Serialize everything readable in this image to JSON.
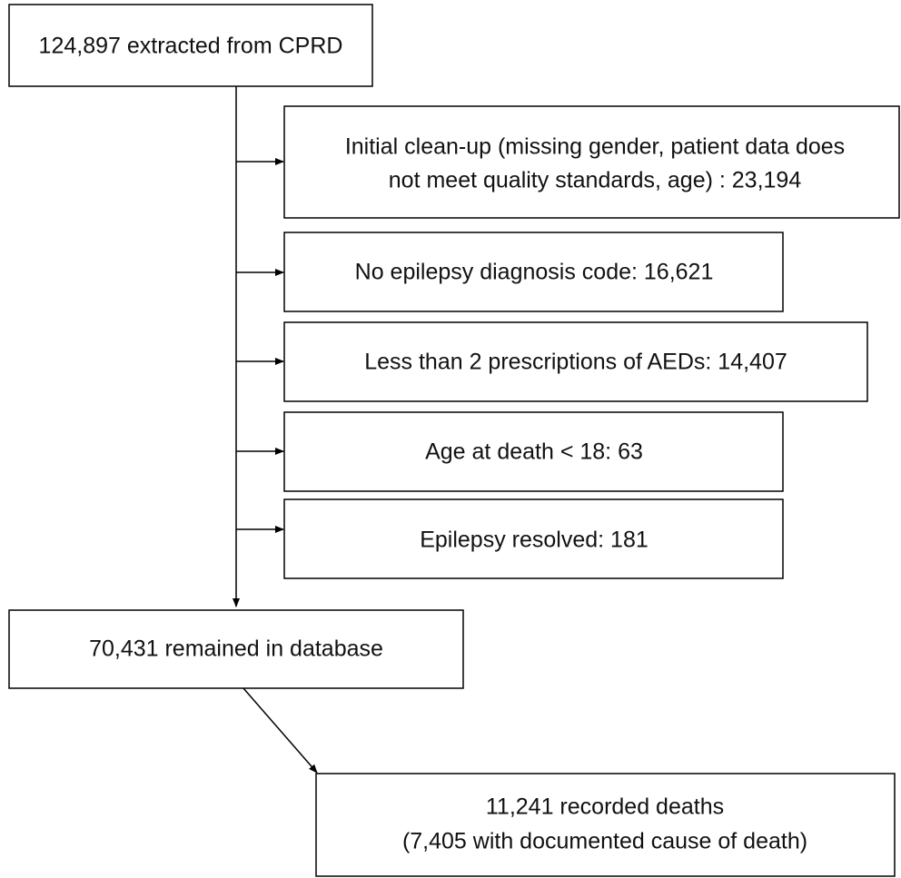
{
  "nodes": [
    {
      "lines": [
        "124,897 extracted from CPRD"
      ]
    },
    {
      "lines": [
        "Initial clean-up (missing gender, patient data does",
        "not meet quality standards, age) : 23,194"
      ]
    },
    {
      "lines": [
        "No epilepsy diagnosis code: 16,621"
      ]
    },
    {
      "lines": [
        "Less than 2 prescriptions of AEDs: 14,407"
      ]
    },
    {
      "lines": [
        "Age at death < 18: 63"
      ]
    },
    {
      "lines": [
        "Epilepsy resolved: 181"
      ]
    },
    {
      "lines": [
        "70,431 remained in database"
      ]
    },
    {
      "lines": [
        "11,241 recorded deaths",
        "(7,405 with documented cause of death)"
      ]
    }
  ]
}
